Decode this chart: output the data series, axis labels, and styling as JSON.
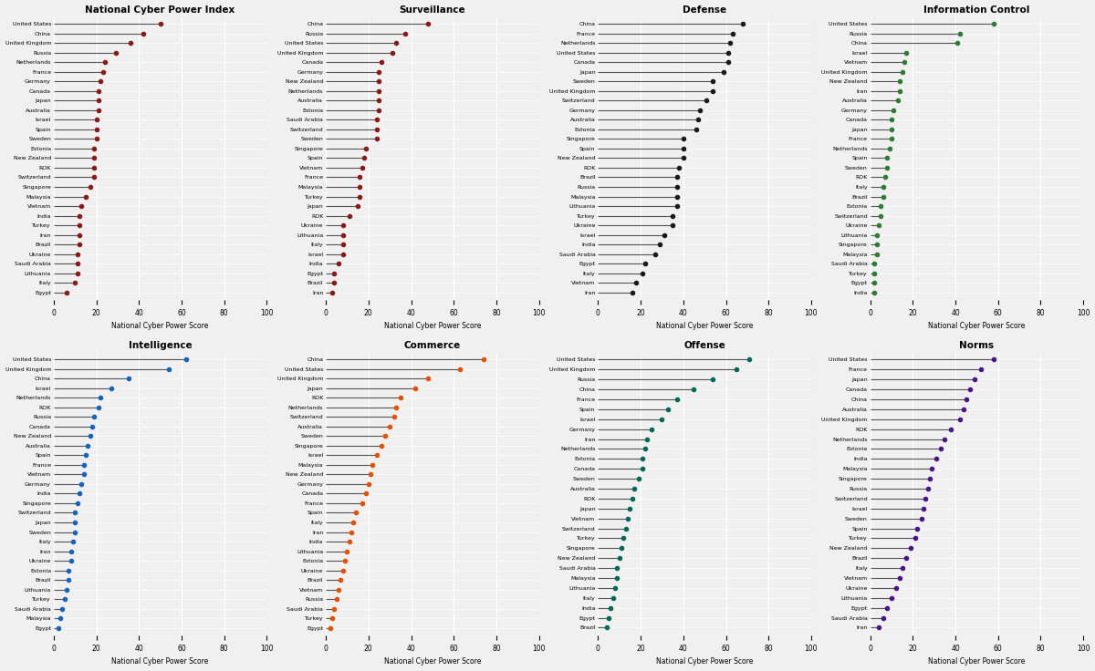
{
  "subplots": [
    {
      "title": "National Cyber Power Index",
      "color": "#8B1A1A",
      "countries": [
        "United States",
        "China",
        "United Kingdom",
        "Russia",
        "Netherlands",
        "France",
        "Germany",
        "Canada",
        "Japan",
        "Australia",
        "Israel",
        "Spain",
        "Sweden",
        "Estonia",
        "New Zealand",
        "ROK",
        "Switzerland",
        "Singapore",
        "Malaysia",
        "Vietnam",
        "India",
        "Turkey",
        "Iran",
        "Brazil",
        "Ukraine",
        "Saudi Arabia",
        "Lithuania",
        "Italy",
        "Egypt"
      ],
      "values": [
        50,
        42,
        36,
        29,
        24,
        23,
        22,
        21,
        21,
        21,
        20,
        20,
        20,
        19,
        19,
        19,
        19,
        17,
        15,
        13,
        12,
        12,
        12,
        12,
        11,
        11,
        11,
        10,
        6
      ]
    },
    {
      "title": "Surveillance",
      "color": "#8B1A1A",
      "countries": [
        "China",
        "Russia",
        "United States",
        "United Kingdom",
        "Canada",
        "Germany",
        "New Zealand",
        "Netherlands",
        "Australia",
        "Estonia",
        "Saudi Arabia",
        "Switzerland",
        "Sweden",
        "Singapore",
        "Spain",
        "Vietnam",
        "France",
        "Malaysia",
        "Turkey",
        "Japan",
        "ROK",
        "Ukraine",
        "Lithuania",
        "Italy",
        "Israel",
        "India",
        "Egypt",
        "Brazil",
        "Iran"
      ],
      "values": [
        48,
        37,
        33,
        31,
        26,
        25,
        25,
        25,
        25,
        25,
        24,
        24,
        24,
        19,
        18,
        17,
        16,
        16,
        16,
        15,
        11,
        8,
        8,
        8,
        8,
        6,
        4,
        4,
        3
      ]
    },
    {
      "title": "Defense",
      "color": "#1A1A1A",
      "countries": [
        "China",
        "France",
        "Netherlands",
        "United States",
        "Canada",
        "Japan",
        "Sweden",
        "United Kingdom",
        "Switzerland",
        "Germany",
        "Australia",
        "Estonia",
        "Singapore",
        "Spain",
        "New Zealand",
        "ROK",
        "Brazil",
        "Russia",
        "Malaysia",
        "Lithuania",
        "Turkey",
        "Ukraine",
        "Israel",
        "India",
        "Saudi Arabia",
        "Egypt",
        "Italy",
        "Vietnam",
        "Iran"
      ],
      "values": [
        68,
        63,
        62,
        61,
        61,
        59,
        54,
        54,
        51,
        48,
        47,
        46,
        40,
        40,
        40,
        38,
        37,
        37,
        37,
        37,
        35,
        35,
        31,
        29,
        27,
        22,
        21,
        18,
        16
      ]
    },
    {
      "title": "Information Control",
      "color": "#2E7D32",
      "countries": [
        "United States",
        "Russia",
        "China",
        "Israel",
        "Vietnam",
        "United Kingdom",
        "New Zealand",
        "Iran",
        "Australia",
        "Germany",
        "Canada",
        "Japan",
        "France",
        "Netherlands",
        "Spain",
        "Sweden",
        "ROK",
        "Italy",
        "Brazil",
        "Estonia",
        "Switzerland",
        "Ukraine",
        "Lithuania",
        "Singapore",
        "Malaysia",
        "Saudi Arabia",
        "Turkey",
        "Egypt",
        "India"
      ],
      "values": [
        58,
        42,
        41,
        17,
        16,
        15,
        14,
        14,
        13,
        11,
        10,
        10,
        10,
        9,
        8,
        8,
        7,
        6,
        6,
        5,
        5,
        4,
        3,
        3,
        3,
        2,
        2,
        2,
        2
      ]
    },
    {
      "title": "Intelligence",
      "color": "#1565C0",
      "countries": [
        "United States",
        "United Kingdom",
        "China",
        "Israel",
        "Netherlands",
        "ROK",
        "Russia",
        "Canada",
        "New Zealand",
        "Australia",
        "Spain",
        "France",
        "Vietnam",
        "Germany",
        "India",
        "Singapore",
        "Switzerland",
        "Japan",
        "Sweden",
        "Italy",
        "Iran",
        "Ukraine",
        "Estonia",
        "Brazil",
        "Lithuania",
        "Turkey",
        "Saudi Arabia",
        "Malaysia",
        "Egypt"
      ],
      "values": [
        62,
        54,
        35,
        27,
        22,
        21,
        19,
        18,
        17,
        16,
        15,
        14,
        14,
        13,
        12,
        11,
        10,
        10,
        10,
        9,
        8,
        8,
        7,
        7,
        6,
        5,
        4,
        3,
        2
      ]
    },
    {
      "title": "Commerce",
      "color": "#E65100",
      "countries": [
        "China",
        "United States",
        "United Kingdom",
        "Japan",
        "ROK",
        "Netherlands",
        "Switzerland",
        "Australia",
        "Sweden",
        "Singapore",
        "Israel",
        "Malaysia",
        "New Zealand",
        "Germany",
        "Canada",
        "France",
        "Spain",
        "Italy",
        "Iran",
        "India",
        "Lithuania",
        "Estonia",
        "Ukraine",
        "Brazil",
        "Vietnam",
        "Russia",
        "Saudi Arabia",
        "Turkey",
        "Egypt"
      ],
      "values": [
        74,
        63,
        48,
        42,
        35,
        33,
        32,
        30,
        28,
        26,
        24,
        22,
        21,
        20,
        19,
        17,
        14,
        13,
        12,
        11,
        10,
        9,
        8,
        7,
        6,
        5,
        4,
        3,
        2
      ]
    },
    {
      "title": "Offense",
      "color": "#00695C",
      "countries": [
        "United States",
        "United Kingdom",
        "Russia",
        "China",
        "France",
        "Spain",
        "Israel",
        "Germany",
        "Iran",
        "Netherlands",
        "Estonia",
        "Canada",
        "Sweden",
        "Australia",
        "ROK",
        "Japan",
        "Vietnam",
        "Switzerland",
        "Turkey",
        "Singapore",
        "New Zealand",
        "Saudi Arabia",
        "Malaysia",
        "Lithuania",
        "Italy",
        "India",
        "Egypt",
        "Brazil"
      ],
      "values": [
        71,
        65,
        54,
        45,
        37,
        33,
        30,
        25,
        23,
        22,
        21,
        21,
        19,
        17,
        16,
        15,
        14,
        13,
        12,
        11,
        10,
        9,
        9,
        8,
        7,
        6,
        5,
        4
      ]
    },
    {
      "title": "Norms",
      "color": "#4A148C",
      "countries": [
        "United States",
        "France",
        "Japan",
        "Canada",
        "China",
        "Australia",
        "United Kingdom",
        "ROK",
        "Netherlands",
        "Estonia",
        "India",
        "Malaysia",
        "Singapore",
        "Russia",
        "Switzerland",
        "Israel",
        "Sweden",
        "Spain",
        "Turkey",
        "New Zealand",
        "Brazil",
        "Italy",
        "Vietnam",
        "Ukraine",
        "Lithuania",
        "Egypt",
        "Saudi Arabia",
        "Iran"
      ],
      "values": [
        58,
        52,
        49,
        47,
        45,
        44,
        42,
        38,
        35,
        33,
        31,
        29,
        28,
        27,
        26,
        25,
        24,
        22,
        21,
        19,
        17,
        15,
        14,
        12,
        10,
        8,
        6,
        4
      ]
    }
  ],
  "xlabel": "National Cyber Power Score",
  "xlim": [
    0,
    100
  ],
  "xticks": [
    0,
    20,
    40,
    60,
    80,
    100
  ],
  "background_color": "#F0F0F0",
  "grid_color": "#FFFFFF",
  "line_color": "#555555"
}
